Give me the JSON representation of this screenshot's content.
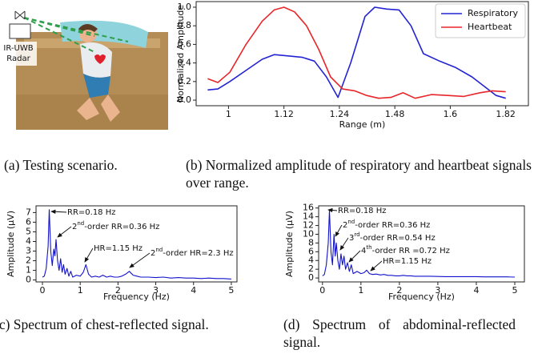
{
  "panel_a": {
    "radar_label": [
      "IR-UWB",
      "Radar"
    ],
    "caption": "(a) Testing scenario."
  },
  "chart_data": [
    {
      "type": "line",
      "caption": "(b) Normalized amplitude of respiratory and heartbeat signals over range.",
      "xlabel": "Range (m)",
      "ylabel": "Normalized Amplitude",
      "xlim": [
        0.93,
        1.91
      ],
      "xticks": [
        1,
        1.12,
        1.24,
        1.48,
        1.6,
        1.82
      ],
      "ylim": [
        -0.06,
        1.06
      ],
      "yticks": [
        {
          "value": 0,
          "label": "0.0"
        },
        0.2,
        0.4,
        0.6,
        0.8,
        {
          "value": 1,
          "label": "1.0"
        }
      ],
      "legend": "upper right",
      "series": [
        {
          "name": "Respiratory",
          "color": "#2323d4",
          "x": [
            0.955,
            0.977,
            1.003,
            1.038,
            1.073,
            1.099,
            1.12,
            1.16,
            1.186,
            1.212,
            1.237,
            1.289,
            1.351,
            1.393,
            1.445,
            1.489,
            1.515,
            1.542,
            1.577,
            1.622,
            1.686,
            1.734,
            1.782,
            1.82
          ],
          "values": [
            0.11,
            0.12,
            0.2,
            0.32,
            0.44,
            0.49,
            0.48,
            0.46,
            0.42,
            0.25,
            0.03,
            0.4,
            0.9,
            1.0,
            0.98,
            0.97,
            0.8,
            0.5,
            0.42,
            0.35,
            0.25,
            0.15,
            0.05,
            0.02
          ]
        },
        {
          "name": "Heartbeat",
          "color": "#e8262a",
          "x": [
            0.955,
            0.977,
            1.003,
            1.038,
            1.073,
            1.099,
            1.12,
            1.143,
            1.169,
            1.195,
            1.221,
            1.254,
            1.306,
            1.358,
            1.41,
            1.463,
            1.498,
            1.524,
            1.559,
            1.595,
            1.654,
            1.718,
            1.766,
            1.82
          ],
          "values": [
            0.23,
            0.19,
            0.3,
            0.6,
            0.85,
            0.97,
            1.0,
            0.95,
            0.8,
            0.55,
            0.25,
            0.12,
            0.1,
            0.05,
            0.02,
            0.03,
            0.08,
            0.02,
            0.06,
            0.05,
            0.04,
            0.08,
            0.1,
            0.09
          ]
        }
      ]
    },
    {
      "type": "line",
      "caption": "(c) Spectrum of chest-reflected signal.",
      "xlabel": "Frequency (Hz)",
      "ylabel": "Amplitude (μV)",
      "xlim": [
        -0.17,
        5.15
      ],
      "xticks": [
        0,
        1,
        2,
        3,
        4,
        5
      ],
      "ylim": [
        -0.2,
        7.7
      ],
      "yticks": [
        0,
        1,
        2,
        3,
        4,
        5,
        6,
        7
      ],
      "annotations": [
        "RR=0.18 Hz",
        "2nd-order RR=0.36 Hz",
        "HR=1.15 Hz",
        "2nd-order HR=2.3 Hz"
      ],
      "series": [
        {
          "color": "#1212cc",
          "x": [
            0,
            0.05,
            0.1,
            0.15,
            0.18,
            0.22,
            0.26,
            0.3,
            0.33,
            0.36,
            0.4,
            0.44,
            0.48,
            0.52,
            0.56,
            0.6,
            0.65,
            0.7,
            0.75,
            0.8,
            0.9,
            1.0,
            1.08,
            1.15,
            1.22,
            1.3,
            1.4,
            1.5,
            1.6,
            1.7,
            1.8,
            1.9,
            2.0,
            2.1,
            2.2,
            2.3,
            2.4,
            2.5,
            2.6,
            2.8,
            3.0,
            3.2,
            3.4,
            3.6,
            3.8,
            4.0,
            4.2,
            4.4,
            4.6,
            4.8,
            5.0
          ],
          "values": [
            0.3,
            0.4,
            1.2,
            3.5,
            7.3,
            3.0,
            1.5,
            3.2,
            2.5,
            4.2,
            2.0,
            1.0,
            2.2,
            0.8,
            1.6,
            0.6,
            1.2,
            0.4,
            0.9,
            0.3,
            0.5,
            0.4,
            0.8,
            1.6,
            0.6,
            0.3,
            0.4,
            0.3,
            0.5,
            0.3,
            0.4,
            0.3,
            0.3,
            0.4,
            0.6,
            0.9,
            0.5,
            0.4,
            0.3,
            0.3,
            0.25,
            0.3,
            0.2,
            0.25,
            0.2,
            0.2,
            0.15,
            0.2,
            0.15,
            0.15,
            0.1
          ]
        }
      ]
    },
    {
      "type": "line",
      "caption": "(d) Spectrum of abdominal-reflected signal.",
      "xlabel": "Frequency (Hz)",
      "ylabel": "Amplitude (μV)",
      "xlim": [
        -0.1,
        5.25
      ],
      "xticks": [
        0,
        1,
        2,
        3,
        4,
        5
      ],
      "ylim": [
        -0.9,
        16.5
      ],
      "yticks": [
        0,
        2,
        4,
        6,
        8,
        10,
        12,
        14,
        16
      ],
      "annotations": [
        "RR=0.18 Hz",
        "2nd-order RR=0.36 Hz",
        "3rd-order RR=0.54 Hz",
        "4th-order RR =0.72 Hz",
        "HR=1.15 Hz"
      ],
      "series": [
        {
          "color": "#1212cc",
          "x": [
            0,
            0.05,
            0.1,
            0.15,
            0.18,
            0.22,
            0.26,
            0.3,
            0.33,
            0.36,
            0.4,
            0.44,
            0.48,
            0.52,
            0.56,
            0.6,
            0.65,
            0.7,
            0.75,
            0.8,
            0.9,
            1.0,
            1.08,
            1.15,
            1.22,
            1.3,
            1.4,
            1.5,
            1.6,
            1.7,
            1.8,
            1.9,
            2.0,
            2.1,
            2.2,
            2.3,
            2.4,
            2.5,
            2.6,
            2.8,
            3.0,
            3.2,
            3.4,
            3.6,
            3.8,
            4.0,
            4.2,
            4.4,
            4.6,
            4.8,
            5.0
          ],
          "values": [
            0.5,
            0.8,
            3,
            8,
            15.5,
            6,
            3,
            10,
            5,
            8,
            4,
            2,
            5.5,
            3,
            5,
            2,
            3.5,
            1.5,
            3,
            1,
            1.5,
            1,
            1.2,
            1.8,
            1,
            0.8,
            0.9,
            0.7,
            0.8,
            0.6,
            0.6,
            0.5,
            0.5,
            0.6,
            0.5,
            0.5,
            0.4,
            0.4,
            0.4,
            0.4,
            0.35,
            0.3,
            0.3,
            0.3,
            0.3,
            0.3,
            0.25,
            0.25,
            0.25,
            0.25,
            0.2
          ]
        }
      ]
    }
  ]
}
